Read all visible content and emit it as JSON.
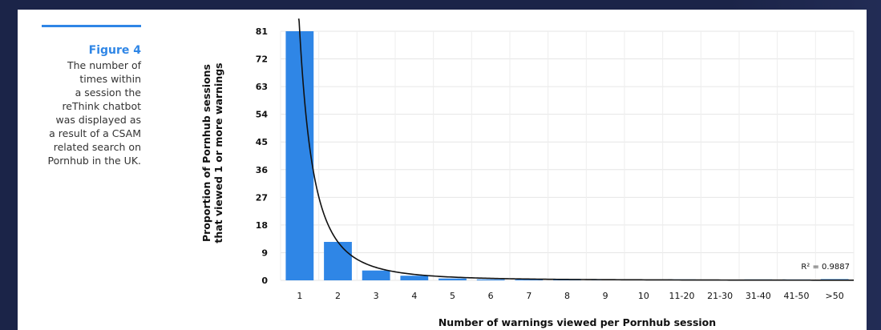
{
  "figure": {
    "title": "Figure 4",
    "caption": [
      "The number of",
      "times within",
      "a session the",
      "reThink chatbot",
      "was displayed as",
      "a result of a CSAM",
      "related search on",
      "Pornhub in the UK."
    ]
  },
  "chart_data": {
    "type": "bar",
    "categories": [
      "1",
      "2",
      "3",
      "4",
      "5",
      "6",
      "7",
      "8",
      "9",
      "10",
      "11-20",
      "21-30",
      "31-40",
      "41-50",
      ">50"
    ],
    "values": [
      81,
      12.5,
      3.2,
      1.5,
      0.6,
      0.3,
      0.25,
      0.2,
      0.2,
      0.2,
      0.3,
      0.2,
      0.3,
      0.3,
      0.4
    ],
    "xlabel": "Number of warnings viewed per Pornhub session",
    "ylabel_lines": [
      "Proportion of Pornhub sessions",
      "that viewed 1 or more warnings"
    ],
    "yticks": [
      0,
      9,
      18,
      27,
      36,
      45,
      54,
      63,
      72,
      81
    ],
    "ylim": [
      0,
      81
    ],
    "grid": true,
    "bar_color": "#2f86e6",
    "trendline": {
      "type": "power",
      "color": "#111111",
      "r_squared_label": "R² = 0.9887"
    }
  }
}
